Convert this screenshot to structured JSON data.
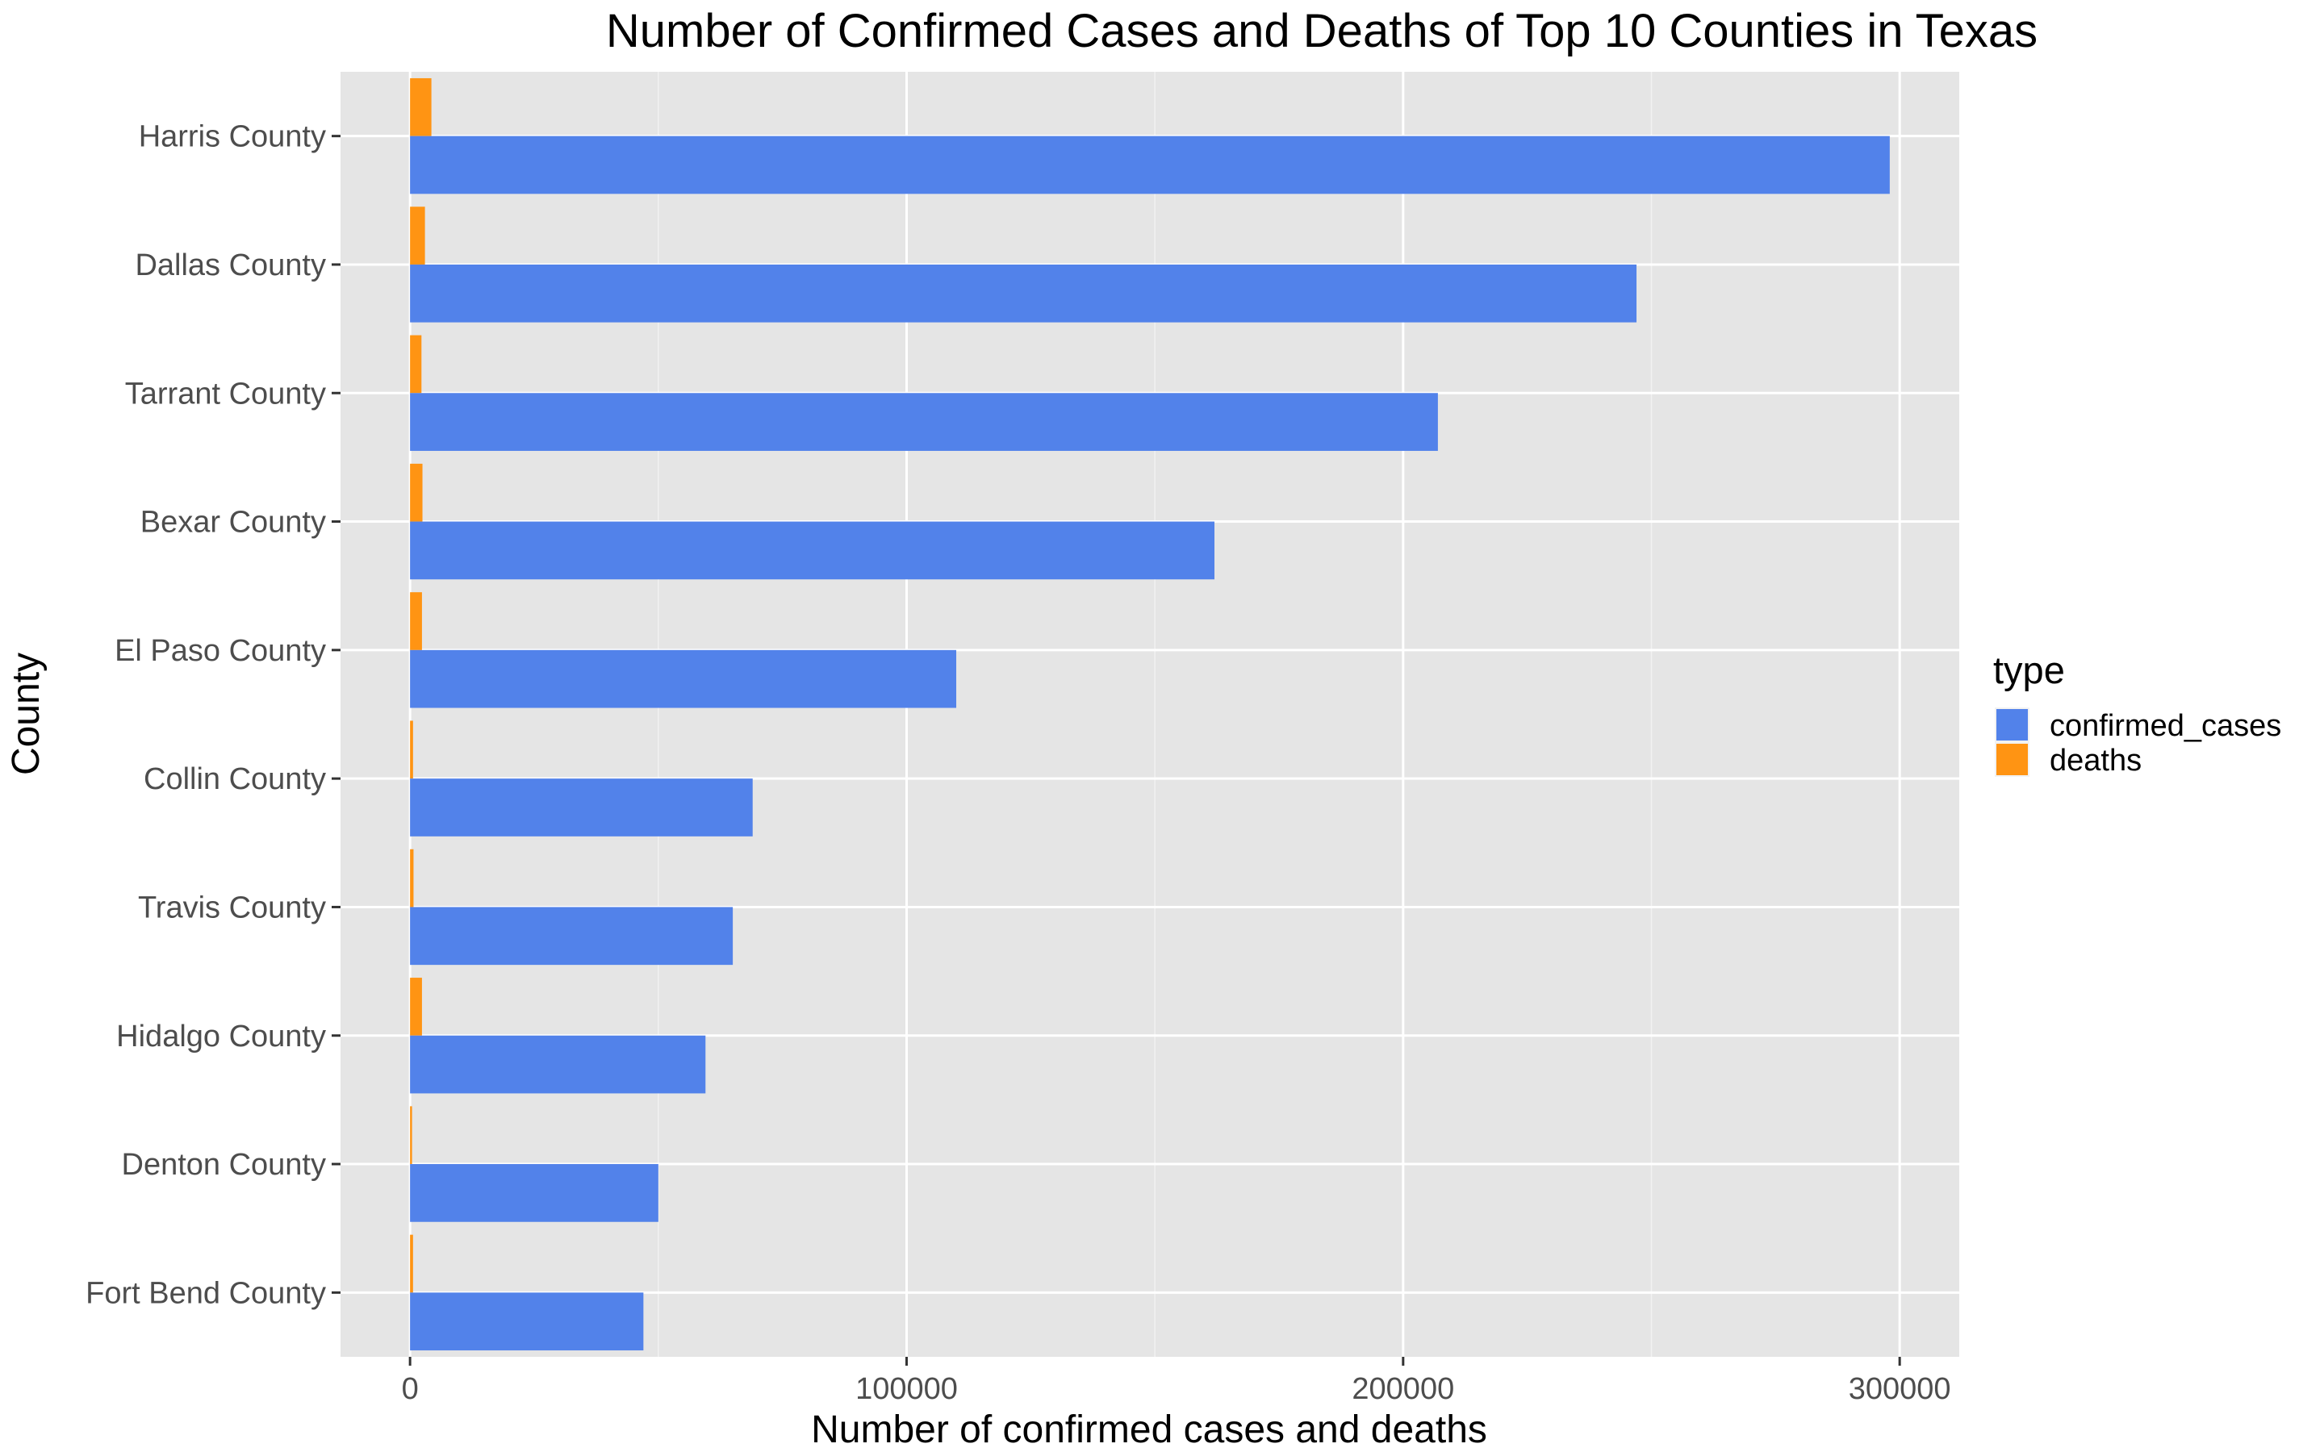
{
  "chart_data": {
    "type": "bar",
    "orientation": "horizontal",
    "title": "Number of Confirmed Cases and Deaths of Top 10 Counties in Texas",
    "xlabel": "Number of confirmed cases and deaths",
    "ylabel": "County",
    "categories": [
      "Harris County",
      "Dallas County",
      "Tarrant County",
      "Bexar County",
      "El Paso County",
      "Collin County",
      "Travis County",
      "Hidalgo County",
      "Denton County",
      "Fort Bend County"
    ],
    "series": [
      {
        "name": "confirmed_cases",
        "color": "#5282ea",
        "values": [
          298000,
          247000,
          207000,
          162000,
          110000,
          69000,
          65000,
          59500,
          50000,
          47000
        ]
      },
      {
        "name": "deaths",
        "color": "#ff9413",
        "values": [
          4300,
          3000,
          2300,
          2500,
          2400,
          600,
          700,
          2400,
          400,
          600
        ]
      }
    ],
    "xlim": [
      -14000,
      312000
    ],
    "xticks": [
      0,
      100000,
      200000,
      300000
    ],
    "xtick_labels": [
      "0",
      "100000",
      "200000",
      "300000"
    ],
    "grid": true,
    "legend_title": "type",
    "legend_placement": "right",
    "panel_background": "#e5e5e5"
  }
}
